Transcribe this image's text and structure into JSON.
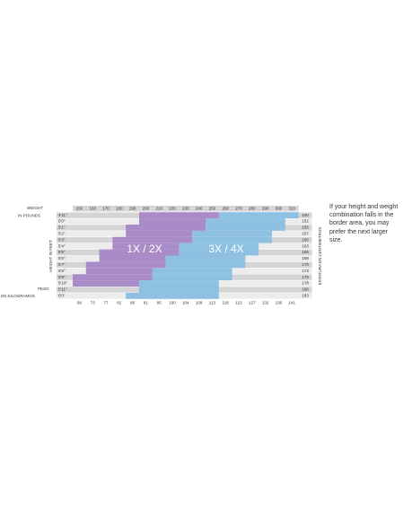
{
  "weight_label": {
    "line1": "WEIGHT",
    "line2": "IN POUNDS"
  },
  "pounds": [
    150,
    160,
    170,
    180,
    190,
    200,
    210,
    220,
    230,
    240,
    250,
    260,
    270,
    280,
    290,
    300,
    310
  ],
  "height_label": "HEIGHT IN FEET",
  "heights": [
    "4'11\"",
    "5'0\"",
    "5'1\"",
    "5'2\"",
    "5'3\"",
    "5'4\"",
    "5'5\"",
    "5'6\"",
    "5'7\"",
    "5'8\"",
    "5'9\"",
    "5'10\"",
    "5'11\"",
    "6'0\""
  ],
  "cm_label": "ESTATURA EN CENTIMETROS",
  "cm": [
    150,
    152,
    155,
    157,
    160,
    163,
    165,
    168,
    170,
    173,
    175,
    178,
    180,
    183
  ],
  "kg_label": {
    "line1": "PESO",
    "line2": "EN KILOGRAMOS"
  },
  "kg": [
    68,
    73,
    77,
    82,
    86,
    91,
    95,
    100,
    104,
    109,
    113,
    118,
    122,
    127,
    132,
    136,
    141
  ],
  "sizes": [
    "1X / 2X",
    "3X / 4X"
  ],
  "note": "If your height and weight combination falls in the border area, you may prefer the next larger size."
}
